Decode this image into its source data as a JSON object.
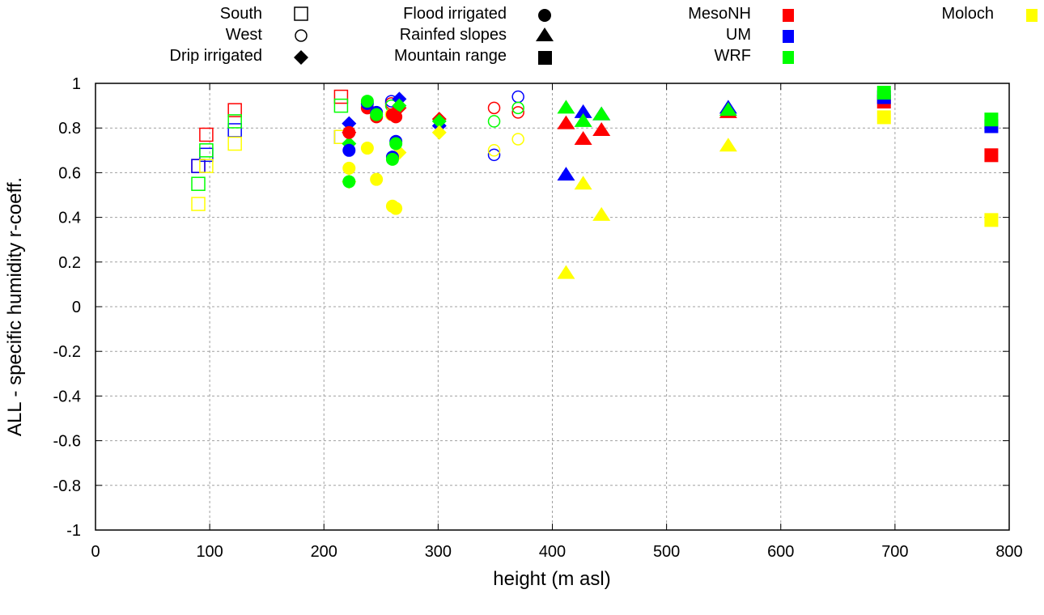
{
  "chart_data": {
    "type": "scatter",
    "title": "",
    "xlabel": "height (m asl)",
    "ylabel": "ALL - specific humidity r-coeff.",
    "xlim": [
      0,
      800
    ],
    "ylim": [
      -1,
      1
    ],
    "xticks": [
      "0",
      "100",
      "200",
      "300",
      "400",
      "500",
      "600",
      "700",
      "800"
    ],
    "yticks": [
      "1",
      "0.8",
      "0.6",
      "0.4",
      "0.2",
      "0",
      "-0.2",
      "-0.4",
      "-0.6",
      "-0.8",
      "-1"
    ],
    "grid": true,
    "legend_placement": "top",
    "region_legend": [
      {
        "name": "South",
        "marker": "open-square"
      },
      {
        "name": "West",
        "marker": "open-circle"
      },
      {
        "name": "Drip irrigated",
        "marker": "diamond"
      },
      {
        "name": "Flood irrigated",
        "marker": "circle"
      },
      {
        "name": "Rainfed slopes",
        "marker": "triangle"
      },
      {
        "name": "Mountain range",
        "marker": "square"
      }
    ],
    "model_legend": [
      {
        "name": "MesoNH",
        "color": "#ff0000"
      },
      {
        "name": "UM",
        "color": "#0000ff"
      },
      {
        "name": "WRF",
        "color": "#00ff00"
      },
      {
        "name": "Moloch",
        "color": "#ffff00"
      }
    ],
    "series": [
      {
        "region": "South",
        "marker": "open-square",
        "points": [
          {
            "model": "MesoNH",
            "x": 90,
            "y": 0.63
          },
          {
            "model": "UM",
            "x": 90,
            "y": 0.63
          },
          {
            "model": "WRF",
            "x": 90,
            "y": 0.55
          },
          {
            "model": "Moloch",
            "x": 90,
            "y": 0.46
          },
          {
            "model": "MesoNH",
            "x": 97,
            "y": 0.77
          },
          {
            "model": "UM",
            "x": 97,
            "y": 0.68
          },
          {
            "model": "WRF",
            "x": 97,
            "y": 0.7
          },
          {
            "model": "Moloch",
            "x": 97,
            "y": 0.63
          },
          {
            "model": "MesoNH",
            "x": 122,
            "y": 0.88
          },
          {
            "model": "UM",
            "x": 122,
            "y": 0.79
          },
          {
            "model": "WRF",
            "x": 122,
            "y": 0.83
          },
          {
            "model": "Moloch",
            "x": 122,
            "y": 0.73
          },
          {
            "model": "MesoNH",
            "x": 215,
            "y": 0.94
          },
          {
            "model": "UM",
            "x": 215,
            "y": 0.76
          },
          {
            "model": "WRF",
            "x": 215,
            "y": 0.9
          },
          {
            "model": "Moloch",
            "x": 215,
            "y": 0.76
          }
        ]
      },
      {
        "region": "West",
        "marker": "open-circle",
        "points": [
          {
            "model": "MesoNH",
            "x": 259,
            "y": 0.91
          },
          {
            "model": "UM",
            "x": 259,
            "y": 0.92
          },
          {
            "model": "WRF",
            "x": 259,
            "y": 0.9
          },
          {
            "model": "Moloch",
            "x": 259,
            "y": 0.86
          },
          {
            "model": "MesoNH",
            "x": 349,
            "y": 0.89
          },
          {
            "model": "UM",
            "x": 349,
            "y": 0.68
          },
          {
            "model": "WRF",
            "x": 349,
            "y": 0.83
          },
          {
            "model": "Moloch",
            "x": 349,
            "y": 0.7
          },
          {
            "model": "MesoNH",
            "x": 370,
            "y": 0.87
          },
          {
            "model": "UM",
            "x": 370,
            "y": 0.94
          },
          {
            "model": "WRF",
            "x": 370,
            "y": 0.89
          },
          {
            "model": "Moloch",
            "x": 370,
            "y": 0.75
          }
        ]
      },
      {
        "region": "Drip irrigated",
        "marker": "diamond",
        "points": [
          {
            "model": "MesoNH",
            "x": 266,
            "y": 0.89
          },
          {
            "model": "UM",
            "x": 266,
            "y": 0.93
          },
          {
            "model": "WRF",
            "x": 266,
            "y": 0.9
          },
          {
            "model": "Moloch",
            "x": 266,
            "y": 0.69
          },
          {
            "model": "MesoNH",
            "x": 222,
            "y": 0.78
          },
          {
            "model": "UM",
            "x": 222,
            "y": 0.82
          },
          {
            "model": "WRF",
            "x": 222,
            "y": 0.73
          },
          {
            "model": "Moloch",
            "x": 222,
            "y": 0.56
          },
          {
            "model": "MesoNH",
            "x": 301,
            "y": 0.84
          },
          {
            "model": "UM",
            "x": 301,
            "y": 0.81
          },
          {
            "model": "WRF",
            "x": 301,
            "y": 0.83
          },
          {
            "model": "Moloch",
            "x": 301,
            "y": 0.78
          }
        ]
      },
      {
        "region": "Flood irrigated",
        "marker": "circle",
        "points": [
          {
            "model": "MesoNH",
            "x": 238,
            "y": 0.89
          },
          {
            "model": "UM",
            "x": 238,
            "y": 0.91
          },
          {
            "model": "WRF",
            "x": 238,
            "y": 0.92
          },
          {
            "model": "Moloch",
            "x": 238,
            "y": 0.71
          },
          {
            "model": "MesoNH",
            "x": 246,
            "y": 0.85
          },
          {
            "model": "UM",
            "x": 246,
            "y": 0.87
          },
          {
            "model": "WRF",
            "x": 246,
            "y": 0.86
          },
          {
            "model": "Moloch",
            "x": 246,
            "y": 0.57
          },
          {
            "model": "MesoNH",
            "x": 263,
            "y": 0.85
          },
          {
            "model": "UM",
            "x": 263,
            "y": 0.74
          },
          {
            "model": "WRF",
            "x": 263,
            "y": 0.73
          },
          {
            "model": "Moloch",
            "x": 263,
            "y": 0.44
          },
          {
            "model": "MesoNH",
            "x": 260,
            "y": 0.86
          },
          {
            "model": "UM",
            "x": 260,
            "y": 0.67
          },
          {
            "model": "WRF",
            "x": 260,
            "y": 0.66
          },
          {
            "model": "Moloch",
            "x": 260,
            "y": 0.45
          },
          {
            "model": "MesoNH",
            "x": 222,
            "y": 0.78
          },
          {
            "model": "UM",
            "x": 222,
            "y": 0.7
          },
          {
            "model": "WRF",
            "x": 222,
            "y": 0.56
          },
          {
            "model": "Moloch",
            "x": 222,
            "y": 0.62
          }
        ]
      },
      {
        "region": "Rainfed slopes",
        "marker": "triangle",
        "points": [
          {
            "model": "MesoNH",
            "x": 412,
            "y": 0.82
          },
          {
            "model": "UM",
            "x": 412,
            "y": 0.59
          },
          {
            "model": "WRF",
            "x": 412,
            "y": 0.89
          },
          {
            "model": "Moloch",
            "x": 412,
            "y": 0.15
          },
          {
            "model": "MesoNH",
            "x": 427,
            "y": 0.75
          },
          {
            "model": "UM",
            "x": 427,
            "y": 0.87
          },
          {
            "model": "WRF",
            "x": 427,
            "y": 0.83
          },
          {
            "model": "Moloch",
            "x": 427,
            "y": 0.55
          },
          {
            "model": "MesoNH",
            "x": 443,
            "y": 0.79
          },
          {
            "model": "UM",
            "x": 443,
            "y": 0.86
          },
          {
            "model": "WRF",
            "x": 443,
            "y": 0.86
          },
          {
            "model": "Moloch",
            "x": 443,
            "y": 0.41
          },
          {
            "model": "MesoNH",
            "x": 554,
            "y": 0.87
          },
          {
            "model": "UM",
            "x": 554,
            "y": 0.89
          },
          {
            "model": "WRF",
            "x": 554,
            "y": 0.88
          },
          {
            "model": "Moloch",
            "x": 554,
            "y": 0.72
          }
        ]
      },
      {
        "region": "Mountain range",
        "marker": "square",
        "points": [
          {
            "model": "MesoNH",
            "x": 690,
            "y": 0.92
          },
          {
            "model": "UM",
            "x": 690,
            "y": 0.94
          },
          {
            "model": "WRF",
            "x": 690,
            "y": 0.96
          },
          {
            "model": "Moloch",
            "x": 690,
            "y": 0.85
          },
          {
            "model": "MesoNH",
            "x": 784,
            "y": 0.68
          },
          {
            "model": "UM",
            "x": 784,
            "y": 0.81
          },
          {
            "model": "WRF",
            "x": 784,
            "y": 0.84
          },
          {
            "model": "Moloch",
            "x": 784,
            "y": 0.39
          }
        ]
      }
    ]
  }
}
